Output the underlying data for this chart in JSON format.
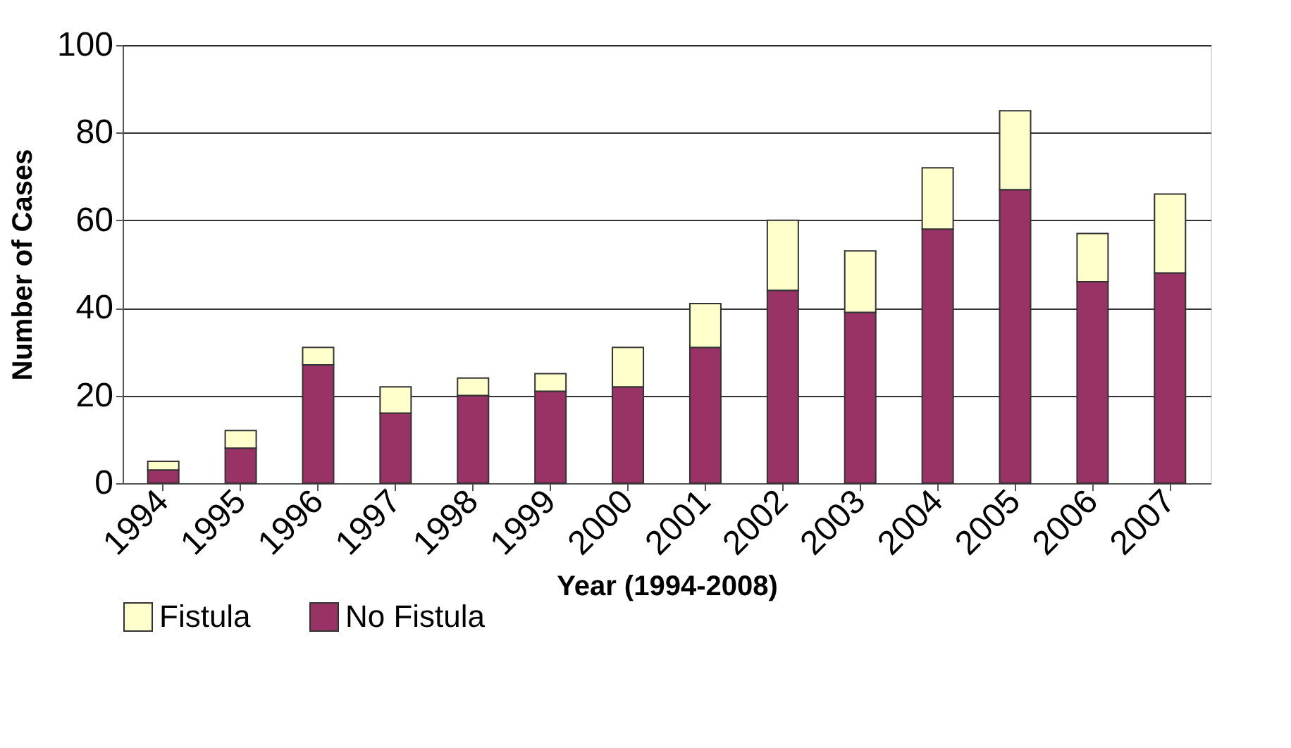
{
  "chart_data": {
    "type": "bar",
    "stacked": true,
    "xlabel": "Year (1994-2008)",
    "ylabel": "Number of Cases",
    "categories": [
      "1994",
      "1995",
      "1996",
      "1997",
      "1998",
      "1999",
      "2000",
      "2001",
      "2002",
      "2003",
      "2004",
      "2005",
      "2006",
      "2007"
    ],
    "series": [
      {
        "name": "No Fistula",
        "color": "#993366",
        "values": [
          3,
          8,
          27,
          16,
          20,
          21,
          22,
          31,
          44,
          39,
          58,
          67,
          46,
          48
        ]
      },
      {
        "name": "Fistula",
        "color": "#ffffcc",
        "values": [
          2,
          4,
          4,
          6,
          4,
          4,
          9,
          10,
          16,
          14,
          14,
          18,
          11,
          18
        ]
      }
    ],
    "ylim": [
      0,
      100
    ],
    "yticks": [
      0,
      20,
      40,
      60,
      80,
      100
    ],
    "grid": "y",
    "legend": "bottom"
  }
}
